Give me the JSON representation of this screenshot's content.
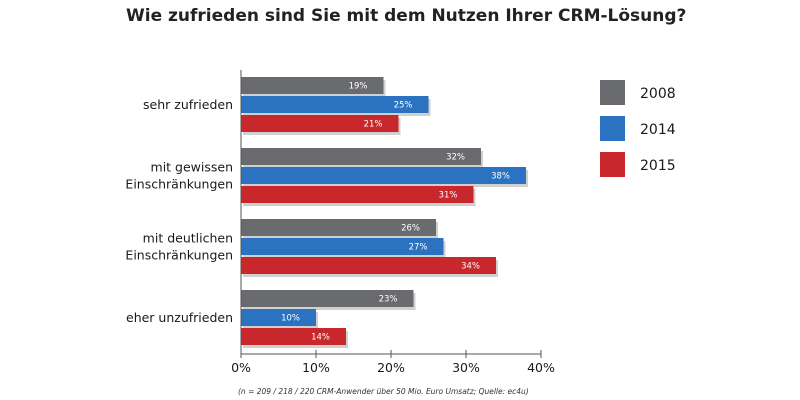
{
  "chart_data": {
    "type": "bar",
    "orientation": "horizontal",
    "title": "Wie zufrieden sind Sie mit dem Nutzen Ihrer CRM-Lösung?",
    "categories": [
      [
        "sehr zufrieden"
      ],
      [
        "mit gewissen",
        "Einschränkungen"
      ],
      [
        "mit deutlichen",
        "Einschränkungen"
      ],
      [
        "eher unzufrieden"
      ]
    ],
    "series": [
      {
        "name": "2008",
        "color": "#6a6b6e",
        "values": [
          19,
          32,
          26,
          23
        ],
        "labels": [
          "19%",
          "32%",
          "26%",
          "23%"
        ]
      },
      {
        "name": "2014",
        "color": "#2b72c0",
        "values": [
          25,
          38,
          27,
          10
        ],
        "labels": [
          "25%",
          "38%",
          "27%",
          "10%"
        ]
      },
      {
        "name": "2015",
        "color": "#c8282b",
        "values": [
          21,
          31,
          34,
          14
        ],
        "labels": [
          "21%",
          "31%",
          "34%",
          "14%"
        ]
      }
    ],
    "xlim": [
      0,
      40
    ],
    "ticks": [
      0,
      10,
      20,
      30,
      40
    ],
    "tick_labels": [
      "0%",
      "10%",
      "20%",
      "30%",
      "40%"
    ],
    "legend_position": "right",
    "footnote": "(n = 209 / 218 / 220 CRM-Anwender über 50 Mio. Euro Umsatz; Quelle: ec4u)"
  }
}
